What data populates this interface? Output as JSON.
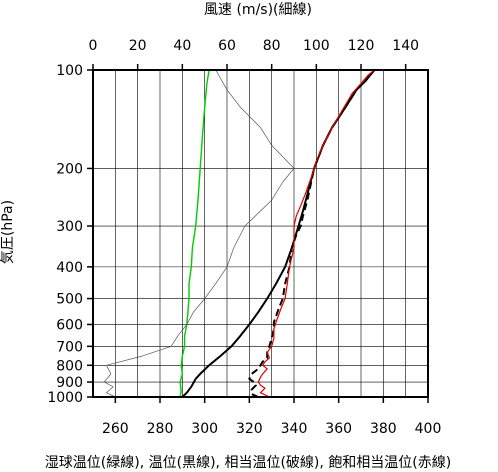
{
  "chart_data": {
    "type": "line",
    "top_axis_label": "風速 (m/s)(細線)",
    "ylabel": "気圧(hPa)",
    "xlabel": "湿球温位(緑線), 温位(黒線), 相当温位(破線), 飽和相当温位(赤線)",
    "y_scale": "log",
    "ylim": [
      1000,
      100
    ],
    "y_ticks": [
      100,
      200,
      300,
      400,
      500,
      600,
      700,
      800,
      900,
      1000
    ],
    "xlim_bottom": [
      250,
      400
    ],
    "x_ticks_bottom": [
      260,
      280,
      300,
      320,
      340,
      360,
      380,
      400
    ],
    "xlim_top": [
      0,
      150
    ],
    "x_ticks_top": [
      0,
      20,
      40,
      60,
      80,
      100,
      120,
      140
    ],
    "grid": true,
    "colors": {
      "wet_bulb": "#00cc00",
      "theta": "#000000",
      "theta_e": "#000000",
      "theta_es": "#dd0000",
      "wind": "#555555"
    },
    "series": [
      {
        "key": "wet_bulb",
        "points": [
          [
            289,
            1000
          ],
          [
            289.5,
            960
          ],
          [
            289,
            900
          ],
          [
            290,
            850
          ],
          [
            289.5,
            800
          ],
          [
            290,
            750
          ],
          [
            291,
            700
          ],
          [
            291,
            650
          ],
          [
            292,
            600
          ],
          [
            292.5,
            550
          ],
          [
            293,
            500
          ],
          [
            293,
            450
          ],
          [
            294,
            400
          ],
          [
            294.5,
            350
          ],
          [
            296,
            300
          ],
          [
            297,
            250
          ],
          [
            298,
            200
          ],
          [
            299,
            160
          ],
          [
            300,
            130
          ],
          [
            301,
            110
          ],
          [
            302,
            100
          ]
        ]
      },
      {
        "key": "theta",
        "points": [
          [
            290,
            1000
          ],
          [
            292,
            970
          ],
          [
            294,
            930
          ],
          [
            296,
            880
          ],
          [
            298,
            850
          ],
          [
            302,
            800
          ],
          [
            307,
            750
          ],
          [
            312,
            700
          ],
          [
            316,
            650
          ],
          [
            320,
            600
          ],
          [
            324,
            550
          ],
          [
            328,
            500
          ],
          [
            332,
            450
          ],
          [
            336,
            400
          ],
          [
            339,
            350
          ],
          [
            342,
            300
          ],
          [
            344,
            270
          ],
          [
            346,
            240
          ],
          [
            349,
            200
          ],
          [
            353,
            170
          ],
          [
            357,
            150
          ],
          [
            363,
            130
          ],
          [
            368,
            115
          ],
          [
            372,
            108
          ],
          [
            376,
            100
          ]
        ]
      },
      {
        "key": "theta_e",
        "points": [
          [
            324,
            1000
          ],
          [
            321,
            980
          ],
          [
            321,
            950
          ],
          [
            323,
            920
          ],
          [
            322,
            900
          ],
          [
            320,
            880
          ],
          [
            321,
            850
          ],
          [
            324,
            820
          ],
          [
            325,
            800
          ],
          [
            326,
            780
          ],
          [
            328,
            760
          ],
          [
            328,
            730
          ],
          [
            329,
            700
          ],
          [
            330,
            660
          ],
          [
            331,
            620
          ],
          [
            331,
            590
          ],
          [
            333,
            540
          ],
          [
            335,
            500
          ],
          [
            336,
            450
          ],
          [
            338,
            400
          ],
          [
            339,
            350
          ],
          [
            341,
            320
          ],
          [
            343,
            300
          ],
          [
            344,
            280
          ],
          [
            346,
            250
          ],
          [
            349,
            200
          ],
          [
            353,
            170
          ],
          [
            357,
            150
          ],
          [
            363,
            130
          ],
          [
            368,
            115
          ],
          [
            372,
            108
          ],
          [
            376,
            100
          ]
        ]
      },
      {
        "key": "theta_es",
        "points": [
          [
            329,
            1000
          ],
          [
            325,
            970
          ],
          [
            327,
            940
          ],
          [
            325,
            920
          ],
          [
            324,
            900
          ],
          [
            325,
            870
          ],
          [
            326,
            850
          ],
          [
            328,
            820
          ],
          [
            326,
            800
          ],
          [
            327,
            780
          ],
          [
            329,
            760
          ],
          [
            328,
            730
          ],
          [
            330,
            700
          ],
          [
            331,
            660
          ],
          [
            331,
            620
          ],
          [
            332,
            590
          ],
          [
            334,
            540
          ],
          [
            336,
            500
          ],
          [
            337,
            450
          ],
          [
            338,
            400
          ],
          [
            340,
            350
          ],
          [
            340,
            300
          ],
          [
            341,
            280
          ],
          [
            343,
            260
          ],
          [
            345,
            240
          ],
          [
            348,
            210
          ],
          [
            350,
            190
          ],
          [
            353,
            170
          ],
          [
            357,
            150
          ],
          [
            361,
            135
          ],
          [
            366,
            118
          ],
          [
            370,
            110
          ],
          [
            373,
            104
          ],
          [
            376,
            100
          ]
        ]
      },
      {
        "key": "wind",
        "axis": "top",
        "points": [
          [
            10,
            1000
          ],
          [
            6,
            970
          ],
          [
            9,
            930
          ],
          [
            5,
            900
          ],
          [
            8,
            850
          ],
          [
            6,
            800
          ],
          [
            22,
            750
          ],
          [
            35,
            700
          ],
          [
            38,
            650
          ],
          [
            42,
            600
          ],
          [
            45,
            550
          ],
          [
            50,
            500
          ],
          [
            55,
            450
          ],
          [
            60,
            400
          ],
          [
            63,
            350
          ],
          [
            68,
            300
          ],
          [
            80,
            250
          ],
          [
            85,
            220
          ],
          [
            90,
            200
          ],
          [
            80,
            170
          ],
          [
            75,
            150
          ],
          [
            66,
            130
          ],
          [
            60,
            115
          ],
          [
            55,
            100
          ]
        ]
      }
    ]
  }
}
